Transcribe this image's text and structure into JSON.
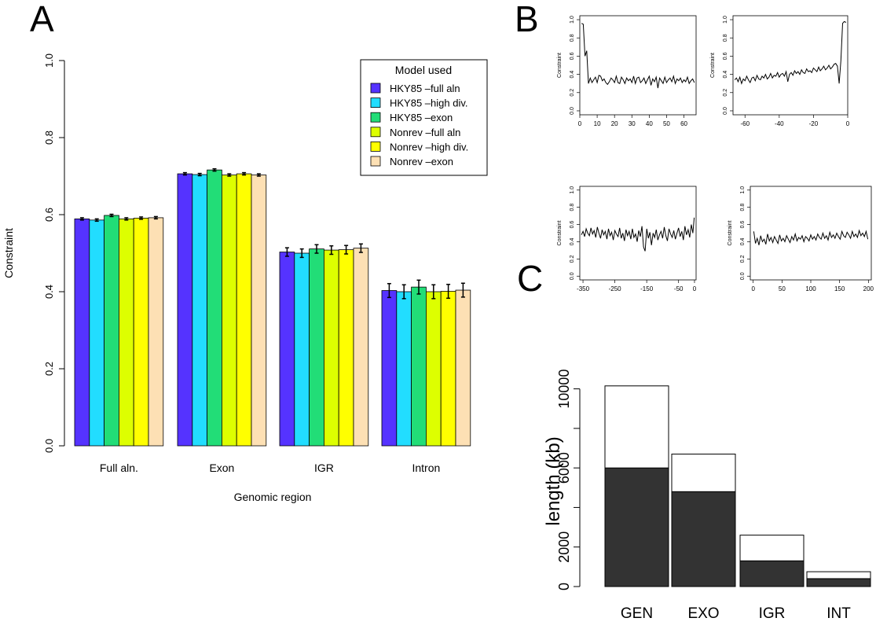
{
  "panels": {
    "A": {
      "letter": "A"
    },
    "B": {
      "letter": "B"
    },
    "C": {
      "letter": "C"
    }
  },
  "chart_data": [
    {
      "id": "A",
      "type": "bar",
      "title": "",
      "xlabel": "Genomic region",
      "ylabel": "Constraint",
      "ylim": [
        0,
        1.0
      ],
      "yticks": [
        "0.0",
        "0.2",
        "0.4",
        "0.6",
        "0.8",
        "1.0"
      ],
      "categories": [
        "Full aln.",
        "Exon",
        "IGR",
        "Intron"
      ],
      "legend_title": "Model used",
      "legend_position": "top-right",
      "series": [
        {
          "name": "HKY85 –full aln",
          "color": "#5533ff",
          "values": [
            0.589,
            0.706,
            0.503,
            0.403
          ],
          "errors": [
            0.003,
            0.003,
            0.011,
            0.018
          ]
        },
        {
          "name": "HKY85 –high div.",
          "color": "#22ddff",
          "values": [
            0.586,
            0.704,
            0.5,
            0.4
          ],
          "errors": [
            0.003,
            0.003,
            0.011,
            0.018
          ]
        },
        {
          "name": "HKY85 –exon",
          "color": "#22dd77",
          "values": [
            0.598,
            0.716,
            0.511,
            0.412
          ],
          "errors": [
            0.003,
            0.003,
            0.011,
            0.018
          ]
        },
        {
          "name": "Nonrev –full aln",
          "color": "#ddff00",
          "values": [
            0.589,
            0.703,
            0.508,
            0.4
          ],
          "errors": [
            0.003,
            0.003,
            0.011,
            0.018
          ]
        },
        {
          "name": "Nonrev –high div.",
          "color": "#ffff00",
          "values": [
            0.591,
            0.706,
            0.509,
            0.401
          ],
          "errors": [
            0.003,
            0.003,
            0.011,
            0.018
          ]
        },
        {
          "name": "Nonrev –exon",
          "color": "#fde0b4",
          "values": [
            0.592,
            0.703,
            0.513,
            0.404
          ],
          "errors": [
            0.003,
            0.003,
            0.011,
            0.018
          ]
        }
      ]
    },
    {
      "id": "B1",
      "type": "line",
      "ylabel": "Constraint",
      "xlim": [
        0,
        67
      ],
      "ylim": [
        0,
        1.0
      ],
      "xticks": [
        "0",
        "10",
        "20",
        "30",
        "40",
        "50",
        "60"
      ],
      "yticks": [
        "0.0",
        "0.2",
        "0.4",
        "0.6",
        "0.8",
        "1.0"
      ],
      "x": [
        1,
        2,
        3,
        4,
        5,
        6,
        7,
        8,
        9,
        10,
        11,
        12,
        13,
        14,
        15,
        16,
        17,
        18,
        19,
        20,
        21,
        22,
        23,
        24,
        25,
        26,
        27,
        28,
        29,
        30,
        31,
        32,
        33,
        34,
        35,
        36,
        37,
        38,
        39,
        40,
        41,
        42,
        43,
        44,
        45,
        46,
        47,
        48,
        49,
        50,
        51,
        52,
        53,
        54,
        55,
        56,
        57,
        58,
        59,
        60,
        61,
        62,
        63,
        64,
        65,
        66
      ],
      "y": [
        0.96,
        0.95,
        0.6,
        0.66,
        0.3,
        0.36,
        0.31,
        0.34,
        0.37,
        0.31,
        0.39,
        0.38,
        0.33,
        0.35,
        0.31,
        0.29,
        0.32,
        0.36,
        0.34,
        0.31,
        0.38,
        0.31,
        0.3,
        0.37,
        0.34,
        0.3,
        0.36,
        0.33,
        0.35,
        0.31,
        0.38,
        0.3,
        0.36,
        0.37,
        0.31,
        0.33,
        0.36,
        0.3,
        0.34,
        0.38,
        0.28,
        0.35,
        0.32,
        0.37,
        0.25,
        0.36,
        0.33,
        0.3,
        0.37,
        0.31,
        0.34,
        0.36,
        0.32,
        0.38,
        0.3,
        0.35,
        0.33,
        0.36,
        0.31,
        0.34,
        0.32,
        0.37,
        0.3,
        0.33,
        0.35,
        0.31
      ]
    },
    {
      "id": "B2",
      "type": "line",
      "ylabel": "Constraint",
      "xlim": [
        -67,
        0
      ],
      "ylim": [
        0,
        1.0
      ],
      "xticks": [
        "-60",
        "-40",
        "-20",
        "0"
      ],
      "yticks": [
        "0.0",
        "0.2",
        "0.4",
        "0.6",
        "0.8",
        "1.0"
      ],
      "x": [
        -66,
        -65,
        -64,
        -63,
        -62,
        -61,
        -60,
        -59,
        -58,
        -57,
        -56,
        -55,
        -54,
        -53,
        -52,
        -51,
        -50,
        -49,
        -48,
        -47,
        -46,
        -45,
        -44,
        -43,
        -42,
        -41,
        -40,
        -39,
        -38,
        -37,
        -36,
        -35,
        -34,
        -33,
        -32,
        -31,
        -30,
        -29,
        -28,
        -27,
        -26,
        -25,
        -24,
        -23,
        -22,
        -21,
        -20,
        -19,
        -18,
        -17,
        -16,
        -15,
        -14,
        -13,
        -12,
        -11,
        -10,
        -9,
        -8,
        -7,
        -6,
        -5,
        -4,
        -3,
        -2,
        -1
      ],
      "y": [
        0.34,
        0.36,
        0.32,
        0.37,
        0.3,
        0.35,
        0.33,
        0.38,
        0.34,
        0.31,
        0.36,
        0.37,
        0.33,
        0.39,
        0.35,
        0.34,
        0.38,
        0.36,
        0.4,
        0.35,
        0.37,
        0.41,
        0.36,
        0.39,
        0.38,
        0.42,
        0.37,
        0.4,
        0.41,
        0.38,
        0.43,
        0.32,
        0.4,
        0.42,
        0.39,
        0.44,
        0.41,
        0.43,
        0.4,
        0.45,
        0.42,
        0.41,
        0.46,
        0.43,
        0.44,
        0.42,
        0.47,
        0.45,
        0.43,
        0.48,
        0.44,
        0.46,
        0.49,
        0.45,
        0.47,
        0.5,
        0.46,
        0.48,
        0.51,
        0.52,
        0.49,
        0.3,
        0.55,
        0.96,
        0.98,
        0.97
      ]
    },
    {
      "id": "B3",
      "type": "line",
      "ylabel": "Constraint",
      "xlim": [
        -360,
        5
      ],
      "ylim": [
        0,
        1.0
      ],
      "xticks": [
        "-350",
        "-250",
        "-150",
        "-50",
        "0"
      ],
      "yticks": [
        "0.0",
        "0.2",
        "0.4",
        "0.6",
        "0.8",
        "1.0"
      ],
      "x": [
        -355,
        -350,
        -345,
        -340,
        -335,
        -330,
        -325,
        -320,
        -315,
        -310,
        -305,
        -300,
        -295,
        -290,
        -285,
        -280,
        -275,
        -270,
        -265,
        -260,
        -255,
        -250,
        -245,
        -240,
        -235,
        -230,
        -225,
        -220,
        -215,
        -210,
        -205,
        -200,
        -195,
        -190,
        -185,
        -180,
        -175,
        -170,
        -165,
        -160,
        -155,
        -150,
        -145,
        -140,
        -135,
        -130,
        -125,
        -120,
        -115,
        -110,
        -105,
        -100,
        -95,
        -90,
        -85,
        -80,
        -75,
        -70,
        -65,
        -60,
        -55,
        -50,
        -45,
        -40,
        -35,
        -30,
        -25,
        -20,
        -15,
        -10,
        -5,
        -1
      ],
      "y": [
        0.48,
        0.52,
        0.46,
        0.55,
        0.5,
        0.47,
        0.56,
        0.49,
        0.53,
        0.45,
        0.57,
        0.5,
        0.44,
        0.54,
        0.48,
        0.52,
        0.43,
        0.55,
        0.47,
        0.51,
        0.42,
        0.53,
        0.49,
        0.46,
        0.56,
        0.44,
        0.5,
        0.41,
        0.54,
        0.47,
        0.52,
        0.43,
        0.55,
        0.45,
        0.49,
        0.4,
        0.53,
        0.46,
        0.58,
        0.34,
        0.29,
        0.55,
        0.44,
        0.51,
        0.36,
        0.5,
        0.45,
        0.54,
        0.42,
        0.48,
        0.52,
        0.44,
        0.57,
        0.47,
        0.41,
        0.55,
        0.49,
        0.45,
        0.53,
        0.43,
        0.5,
        0.56,
        0.46,
        0.52,
        0.42,
        0.58,
        0.48,
        0.54,
        0.45,
        0.6,
        0.5,
        0.68
      ]
    },
    {
      "id": "B4",
      "type": "line",
      "ylabel": "Constraint",
      "xlim": [
        -5,
        205
      ],
      "ylim": [
        0,
        1.0
      ],
      "xticks": [
        "0",
        "50",
        "100",
        "150",
        "200"
      ],
      "yticks": [
        "0.0",
        "0.2",
        "0.4",
        "0.6",
        "0.8",
        "1.0"
      ],
      "x": [
        1,
        4,
        7,
        10,
        13,
        16,
        19,
        22,
        25,
        28,
        31,
        34,
        37,
        40,
        43,
        46,
        49,
        52,
        55,
        58,
        61,
        64,
        67,
        70,
        73,
        76,
        79,
        82,
        85,
        88,
        91,
        94,
        97,
        100,
        103,
        106,
        109,
        112,
        115,
        118,
        121,
        124,
        127,
        130,
        133,
        136,
        139,
        142,
        145,
        148,
        151,
        154,
        157,
        160,
        163,
        166,
        169,
        172,
        175,
        178,
        181,
        184,
        187,
        190,
        193,
        196,
        199
      ],
      "y": [
        0.52,
        0.38,
        0.44,
        0.36,
        0.47,
        0.4,
        0.43,
        0.37,
        0.49,
        0.41,
        0.45,
        0.39,
        0.46,
        0.42,
        0.38,
        0.48,
        0.41,
        0.44,
        0.4,
        0.47,
        0.43,
        0.39,
        0.46,
        0.42,
        0.49,
        0.41,
        0.45,
        0.43,
        0.47,
        0.4,
        0.46,
        0.44,
        0.41,
        0.48,
        0.43,
        0.46,
        0.42,
        0.49,
        0.45,
        0.43,
        0.5,
        0.44,
        0.47,
        0.42,
        0.51,
        0.45,
        0.48,
        0.44,
        0.5,
        0.46,
        0.43,
        0.52,
        0.47,
        0.45,
        0.51,
        0.48,
        0.44,
        0.52,
        0.46,
        0.49,
        0.45,
        0.53,
        0.47,
        0.5,
        0.46,
        0.52,
        0.43
      ]
    },
    {
      "id": "C",
      "type": "bar",
      "stacked": true,
      "ylabel": "length (kb)",
      "ylim": [
        0,
        10500
      ],
      "yticks": [
        "0",
        "2000",
        "6000",
        "10000"
      ],
      "categories": [
        "GEN",
        "EXO",
        "IGR",
        "INT"
      ],
      "series": [
        {
          "color": "#333333",
          "values": [
            6000,
            4800,
            1300,
            400
          ]
        },
        {
          "color": "#ffffff",
          "values": [
            4150,
            1900,
            1300,
            350
          ]
        }
      ]
    }
  ]
}
